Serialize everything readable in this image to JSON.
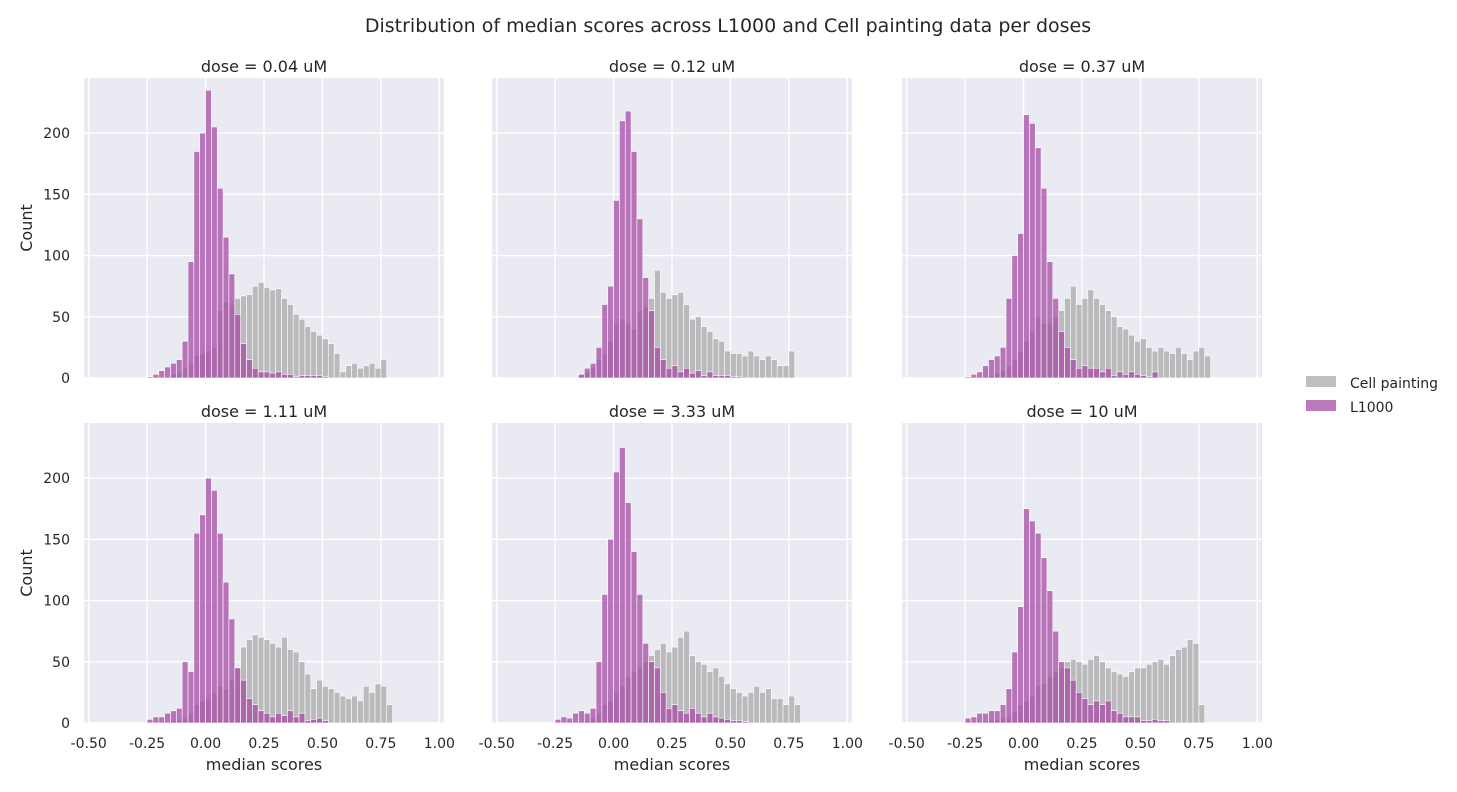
{
  "figure_title": "Distribution of median scores across L1000 and Cell painting data per doses",
  "chart_data": {
    "type": "histogram",
    "title": "Distribution of median scores across L1000 and Cell painting data per doses",
    "xlabel": "median scores",
    "ylabel": "Count",
    "xlim": [
      -0.52,
      1.02
    ],
    "ylim": [
      0,
      245
    ],
    "xticks": [
      "-0.50",
      "-0.25",
      "0.00",
      "0.25",
      "0.50",
      "0.75",
      "1.00"
    ],
    "xtick_values": [
      -0.5,
      -0.25,
      0,
      0.25,
      0.5,
      0.75,
      1.0
    ],
    "yticks": [
      0,
      50,
      100,
      150,
      200
    ],
    "bin_start": -0.25,
    "bin_width": 0.025,
    "grid": true,
    "legend_placement": "right-outside",
    "colors": {
      "cell_painting": "#a9a9a9",
      "l1000": "#a64ca6",
      "background": "#eaeaf2",
      "grid": "#ffffff"
    },
    "series_names": [
      "Cell painting",
      "L1000"
    ],
    "panels": [
      {
        "title": "dose = 0.04 uM",
        "cell_painting": [
          0,
          0,
          0,
          0,
          3,
          5,
          8,
          12,
          18,
          20,
          22,
          25,
          55,
          62,
          60,
          65,
          67,
          68,
          75,
          78,
          74,
          72,
          73,
          65,
          60,
          52,
          48,
          42,
          38,
          35,
          32,
          28,
          20,
          5,
          10,
          12,
          8,
          10,
          12,
          8,
          15,
          0
        ],
        "l1000": [
          1,
          3,
          6,
          9,
          12,
          15,
          30,
          95,
          185,
          200,
          235,
          205,
          155,
          115,
          85,
          52,
          28,
          15,
          8,
          5,
          5,
          4,
          5,
          3,
          3,
          1,
          2,
          2,
          2,
          2,
          1,
          0,
          0,
          0,
          0,
          0,
          0,
          0,
          0,
          0,
          0,
          0
        ]
      },
      {
        "title": "dose = 0.12 uM",
        "cell_painting": [
          0,
          0,
          0,
          0,
          3,
          5,
          8,
          15,
          20,
          30,
          45,
          48,
          45,
          40,
          55,
          58,
          65,
          88,
          70,
          65,
          68,
          70,
          60,
          48,
          50,
          42,
          38,
          32,
          30,
          22,
          20,
          20,
          18,
          22,
          18,
          15,
          18,
          15,
          10,
          10,
          22,
          0
        ],
        "l1000": [
          0,
          0,
          0,
          0,
          3,
          8,
          12,
          25,
          60,
          75,
          145,
          210,
          218,
          185,
          130,
          82,
          55,
          25,
          15,
          8,
          10,
          5,
          8,
          4,
          6,
          2,
          5,
          2,
          2,
          2,
          1,
          1,
          0,
          0,
          0,
          0,
          0,
          0,
          0,
          0,
          0,
          0
        ]
      },
      {
        "title": "dose = 0.37 uM",
        "cell_painting": [
          0,
          0,
          0,
          0,
          2,
          4,
          6,
          10,
          15,
          22,
          30,
          38,
          50,
          45,
          45,
          50,
          55,
          65,
          75,
          60,
          65,
          72,
          65,
          60,
          55,
          50,
          42,
          40,
          35,
          30,
          32,
          25,
          22,
          25,
          22,
          20,
          25,
          20,
          15,
          22,
          25,
          18
        ],
        "l1000": [
          1,
          3,
          5,
          10,
          15,
          18,
          25,
          65,
          100,
          118,
          215,
          208,
          188,
          155,
          95,
          65,
          38,
          25,
          15,
          8,
          10,
          8,
          8,
          5,
          8,
          2,
          5,
          3,
          5,
          3,
          2,
          1,
          5,
          0,
          0,
          0,
          0,
          0,
          0,
          0,
          0,
          0
        ]
      },
      {
        "title": "dose = 1.11 uM",
        "cell_painting": [
          0,
          0,
          0,
          0,
          2,
          3,
          5,
          8,
          15,
          18,
          20,
          25,
          30,
          28,
          35,
          45,
          62,
          68,
          72,
          70,
          68,
          65,
          62,
          70,
          60,
          58,
          50,
          40,
          28,
          35,
          30,
          28,
          25,
          22,
          20,
          22,
          18,
          30,
          25,
          32,
          30,
          15
        ],
        "l1000": [
          3,
          5,
          5,
          8,
          10,
          12,
          50,
          42,
          155,
          170,
          200,
          190,
          155,
          115,
          85,
          45,
          35,
          20,
          15,
          10,
          8,
          5,
          8,
          6,
          10,
          5,
          8,
          2,
          3,
          4,
          2,
          0,
          0,
          0,
          0,
          0,
          0,
          0,
          0,
          0,
          0,
          0
        ]
      },
      {
        "title": "dose = 3.33 uM",
        "cell_painting": [
          0,
          0,
          0,
          0,
          1,
          2,
          5,
          8,
          15,
          18,
          25,
          30,
          38,
          42,
          45,
          50,
          55,
          60,
          65,
          58,
          62,
          70,
          75,
          55,
          50,
          48,
          42,
          45,
          38,
          32,
          28,
          25,
          22,
          25,
          30,
          25,
          28,
          20,
          20,
          15,
          22,
          15
        ],
        "l1000": [
          3,
          5,
          4,
          8,
          10,
          8,
          12,
          50,
          105,
          150,
          205,
          225,
          180,
          140,
          105,
          65,
          50,
          45,
          25,
          12,
          15,
          10,
          8,
          12,
          8,
          5,
          8,
          5,
          4,
          3,
          2,
          2,
          1,
          0,
          0,
          0,
          0,
          0,
          0,
          0,
          0,
          0
        ]
      },
      {
        "title": "dose = 10 uM",
        "cell_painting": [
          0,
          0,
          0,
          0,
          2,
          3,
          4,
          6,
          10,
          15,
          18,
          22,
          30,
          32,
          38,
          42,
          45,
          50,
          52,
          50,
          48,
          52,
          55,
          50,
          45,
          42,
          40,
          38,
          42,
          45,
          45,
          48,
          50,
          52,
          48,
          55,
          60,
          62,
          68,
          65,
          15,
          0
        ],
        "l1000": [
          4,
          5,
          8,
          8,
          10,
          10,
          15,
          28,
          58,
          95,
          175,
          165,
          155,
          135,
          108,
          75,
          50,
          45,
          35,
          25,
          20,
          15,
          18,
          15,
          18,
          10,
          8,
          5,
          5,
          5,
          2,
          2,
          3,
          2,
          2,
          0,
          0,
          0,
          0,
          0,
          0,
          0
        ]
      }
    ]
  }
}
